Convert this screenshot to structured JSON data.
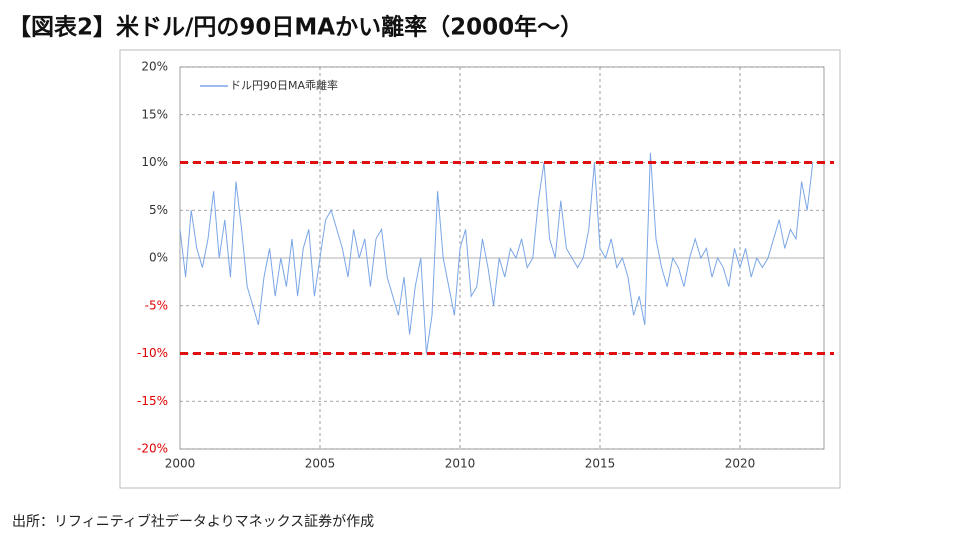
{
  "chart_data": {
    "type": "line",
    "title": "【図表2】米ドル/円の90日MAかい離率（2000年～）",
    "source": "出所：リフィニティブ社データよりマネックス証券が作成",
    "x": [
      2000,
      2000.2,
      2000.4,
      2000.6,
      2000.8,
      2001,
      2001.2,
      2001.4,
      2001.6,
      2001.8,
      2002,
      2002.2,
      2002.4,
      2002.6,
      2002.8,
      2003,
      2003.2,
      2003.4,
      2003.6,
      2003.8,
      2004,
      2004.2,
      2004.4,
      2004.6,
      2004.8,
      2005,
      2005.2,
      2005.4,
      2005.6,
      2005.8,
      2006,
      2006.2,
      2006.4,
      2006.6,
      2006.8,
      2007,
      2007.2,
      2007.4,
      2007.6,
      2007.8,
      2008,
      2008.2,
      2008.4,
      2008.6,
      2008.8,
      2009,
      2009.2,
      2009.4,
      2009.6,
      2009.8,
      2010,
      2010.2,
      2010.4,
      2010.6,
      2010.8,
      2011,
      2011.2,
      2011.4,
      2011.6,
      2011.8,
      2012,
      2012.2,
      2012.4,
      2012.6,
      2012.8,
      2013,
      2013.2,
      2013.4,
      2013.6,
      2013.8,
      2014,
      2014.2,
      2014.4,
      2014.6,
      2014.8,
      2015,
      2015.2,
      2015.4,
      2015.6,
      2015.8,
      2016,
      2016.2,
      2016.4,
      2016.6,
      2016.8,
      2017,
      2017.2,
      2017.4,
      2017.6,
      2017.8,
      2018,
      2018.2,
      2018.4,
      2018.6,
      2018.8,
      2019,
      2019.2,
      2019.4,
      2019.6,
      2019.8,
      2020,
      2020.2,
      2020.4,
      2020.6,
      2020.8,
      2021,
      2021.2,
      2021.4,
      2021.6,
      2021.8,
      2022,
      2022.2,
      2022.4,
      2022.6
    ],
    "series": [
      {
        "name": "ドル円90日MA乖離率",
        "color": "#7aa6e6",
        "values": [
          3,
          -2,
          5,
          1,
          -1,
          2,
          7,
          0,
          4,
          -2,
          8,
          3,
          -3,
          -5,
          -7,
          -2,
          1,
          -4,
          0,
          -3,
          2,
          -4,
          1,
          3,
          -4,
          0,
          4,
          5,
          3,
          1,
          -2,
          3,
          0,
          2,
          -3,
          2,
          3,
          -2,
          -4,
          -6,
          -2,
          -8,
          -3,
          0,
          -10,
          -6,
          7,
          0,
          -3,
          -6,
          1,
          3,
          -4,
          -3,
          2,
          -1,
          -5,
          0,
          -2,
          1,
          0,
          2,
          -1,
          0,
          6,
          10,
          2,
          0,
          6,
          1,
          0,
          -1,
          0,
          3,
          10,
          1,
          0,
          2,
          -1,
          0,
          -2,
          -6,
          -4,
          -7,
          11,
          2,
          -1,
          -3,
          0,
          -1,
          -3,
          0,
          2,
          0,
          1,
          -2,
          0,
          -1,
          -3,
          1,
          -1,
          1,
          -2,
          0,
          -1,
          0,
          2,
          4,
          1,
          3,
          2,
          8,
          5,
          10
        ]
      }
    ],
    "xlim": [
      2000,
      2023
    ],
    "xticks": [
      2000,
      2005,
      2010,
      2015,
      2020
    ],
    "ylim": [
      -20,
      20
    ],
    "yticks": [
      {
        "value": -20,
        "label": "-20%"
      },
      {
        "value": -15,
        "label": "-15%"
      },
      {
        "value": -10,
        "label": "-10%"
      },
      {
        "value": -5,
        "label": "-5%"
      },
      {
        "value": 0,
        "label": "0%"
      },
      {
        "value": 5,
        "label": "5%"
      },
      {
        "value": 10,
        "label": "10%"
      },
      {
        "value": 15,
        "label": "15%"
      },
      {
        "value": 20,
        "label": "20%"
      }
    ],
    "negative_tick_color": "#e00000",
    "reference_lines": [
      {
        "value": 10,
        "color": "#e01010"
      },
      {
        "value": -10,
        "color": "#e01010"
      }
    ],
    "grid": true,
    "legend": "top-left"
  }
}
